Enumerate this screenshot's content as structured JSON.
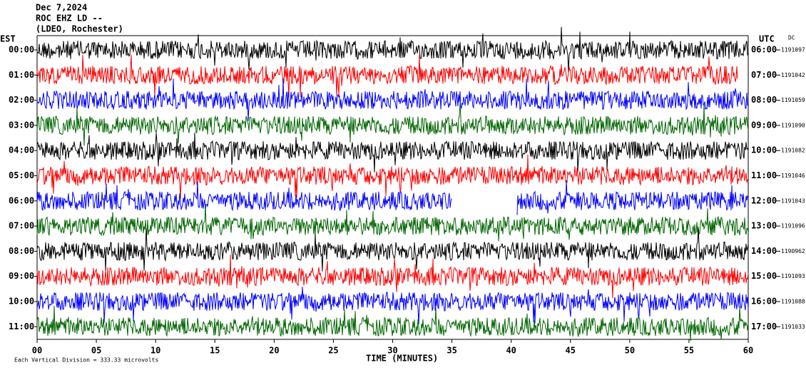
{
  "chart_data": {
    "type": "helicorder",
    "title": "Dec 7,2024",
    "subtitle": "ROC EHZ LD --",
    "station": "(LDEO, Rochester)",
    "left_zone": "EST",
    "right_zone": "UTC",
    "dc_label": "DC",
    "xlabel": "TIME (MINUTES)",
    "scale_note": "Each Vertical Division =  333.33 microvolts",
    "xlim": [
      0,
      60
    ],
    "xticks": [
      {
        "value": 0,
        "label": "00"
      },
      {
        "value": 5,
        "label": "05"
      },
      10,
      15,
      20,
      25,
      30,
      35,
      40,
      45,
      50,
      55,
      60
    ],
    "rows": [
      {
        "est": "00:00",
        "utc": "06:00",
        "dc": 1191097,
        "color": "#000000"
      },
      {
        "est": "01:00",
        "utc": "07:00",
        "dc": 1191042,
        "color": "#ff0000"
      },
      {
        "est": "02:00",
        "utc": "08:00",
        "dc": 1191059,
        "color": "#0000ff"
      },
      {
        "est": "03:00",
        "utc": "09:00",
        "dc": 1191090,
        "color": "#006600"
      },
      {
        "est": "04:00",
        "utc": "10:00",
        "dc": 1191082,
        "color": "#000000"
      },
      {
        "est": "05:00",
        "utc": "11:00",
        "dc": 1191046,
        "color": "#ff0000"
      },
      {
        "est": "06:00",
        "utc": "12:00",
        "dc": 1191043,
        "color": "#0000ff"
      },
      {
        "est": "07:00",
        "utc": "13:00",
        "dc": 1191096,
        "color": "#006600"
      },
      {
        "est": "08:00",
        "utc": "14:00",
        "dc": 1190962,
        "color": "#000000"
      },
      {
        "est": "09:00",
        "utc": "15:00",
        "dc": 1191093,
        "color": "#ff0000"
      },
      {
        "est": "10:00",
        "utc": "16:00",
        "dc": 1191088,
        "color": "#0000ff"
      },
      {
        "est": "11:00",
        "utc": "17:00",
        "dc": 1191033,
        "color": "#006600"
      }
    ]
  }
}
